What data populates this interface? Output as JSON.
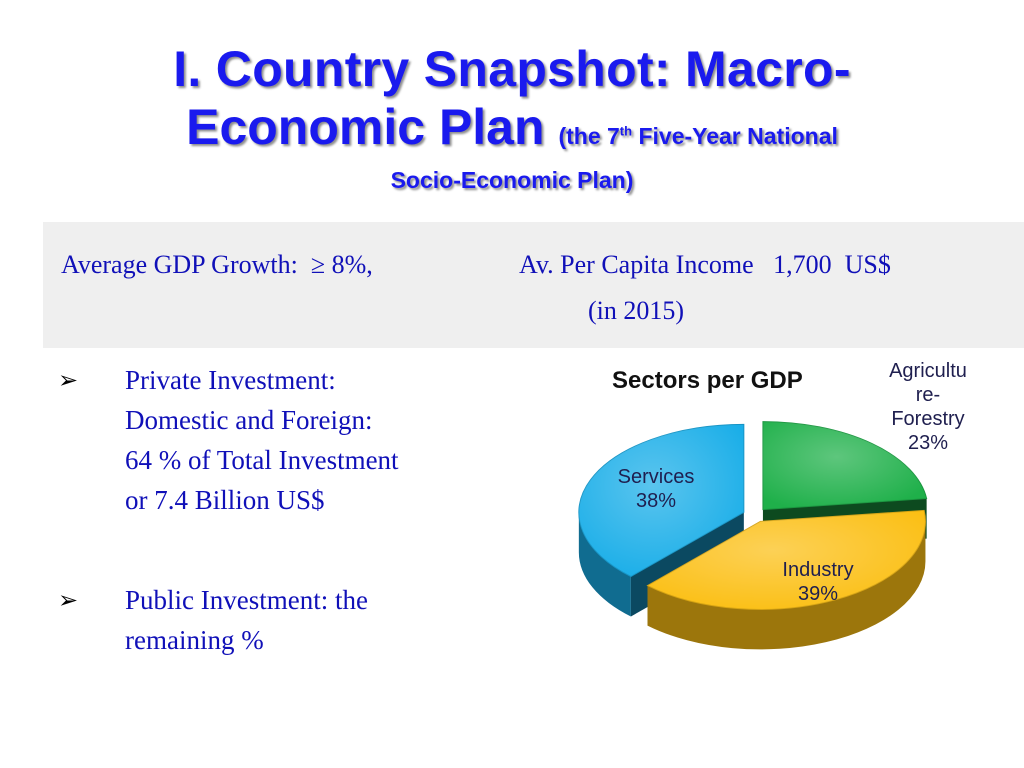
{
  "title": {
    "line1": "I. Country Snapshot: Macro-",
    "line2": "Economic Plan",
    "subtitle_prefix": "(the 7",
    "subtitle_sup": "th",
    "subtitle_rest": " Five-Year National",
    "subtitle_line2": "Socio-Economic Plan)"
  },
  "summary": {
    "gdp_growth": "Average GDP Growth:  ≥ 8%,",
    "income": "Av. Per Capita Income   1,700  US$",
    "income_year": "(in 2015)"
  },
  "bullets": {
    "private": {
      "line1": "Private Investment:",
      "line2": "Domestic and Foreign:",
      "line3": "64 % of Total Investment",
      "line4": "or  7.4 Billion US$"
    },
    "public": {
      "line1": "Public Investment:  the",
      "line2": "remaining %"
    }
  },
  "chart_data": {
    "type": "pie",
    "title": "Sectors per GDP",
    "style": "3d-exploded",
    "slices": [
      {
        "label_lines": [
          "Agricultu",
          "re-",
          "Forestry",
          "23%"
        ],
        "value": 23,
        "color": "#1fb04a"
      },
      {
        "label_lines": [
          "Industry",
          "39%"
        ],
        "value": 39,
        "color": "#fbbf14"
      },
      {
        "label_lines": [
          "Services",
          "38%"
        ],
        "value": 38,
        "color": "#1aaee8"
      }
    ]
  }
}
